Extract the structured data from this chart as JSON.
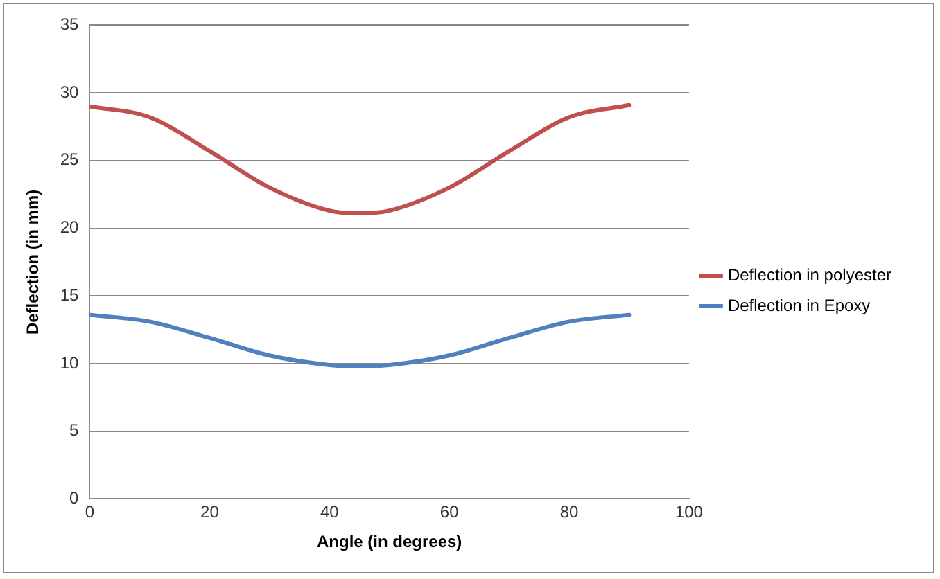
{
  "chart_data": {
    "type": "line",
    "xlabel": "Angle (in degrees)",
    "ylabel": "Deflection (in mm)",
    "xlim": [
      0,
      100
    ],
    "xticks": [
      0,
      20,
      40,
      60,
      80,
      100
    ],
    "ylim": [
      0,
      35
    ],
    "yticks": [
      0,
      5,
      10,
      15,
      20,
      25,
      30,
      35
    ],
    "grid": "y",
    "legend": "right",
    "marker": "none",
    "line_style": "solid",
    "series": [
      {
        "name": "Deflection in polyester",
        "color": "#c0504d",
        "x": [
          0,
          10,
          20,
          30,
          40,
          45,
          50,
          60,
          70,
          80,
          90
        ],
        "values": [
          29,
          28.2,
          25.7,
          23,
          21.3,
          21.1,
          21.3,
          23,
          25.7,
          28.2,
          29.1
        ]
      },
      {
        "name": "Deflection in Epoxy",
        "color": "#4f81bd",
        "x": [
          0,
          10,
          20,
          30,
          40,
          45,
          50,
          60,
          70,
          80,
          90
        ],
        "values": [
          13.6,
          13.1,
          11.9,
          10.6,
          9.9,
          9.8,
          9.9,
          10.6,
          11.9,
          13.1,
          13.6
        ]
      }
    ]
  }
}
